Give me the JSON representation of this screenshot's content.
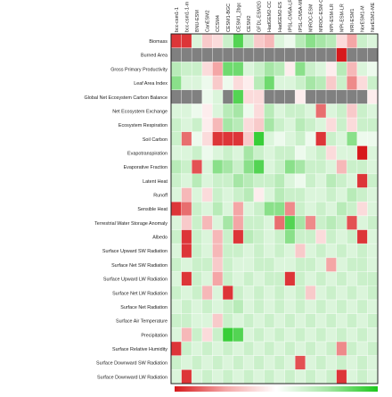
{
  "chart_data": {
    "type": "heatmap",
    "models": [
      "bcc-csm1-1",
      "bcc-csm1-1-m",
      "BNU-ESM",
      "CanESM2",
      "CCSM4",
      "CESM1-BGC",
      "CESM1_2bgc",
      "CESM2",
      "GFDL-ESM2G",
      "HadGEM2-CC",
      "HadGEM2-ES",
      "IPSL-CM5A-LR",
      "IPSL-CM5A-MR",
      "MIROC-ESM",
      "MIROC-ESM-C",
      "MPI-ESM-LR",
      "MPI-ESM-LR",
      "MRI-ESM1",
      "NorESM1-M",
      "NorESM1-ME"
    ],
    "variables": [
      "Biomass",
      "Burned Area",
      "Gross Primary Productivity",
      "Leaf Area Index",
      "Global Net Ecosystem Carbon Balance",
      "Net Ecosystem Exchange",
      "Ecosystem Respiration",
      "Soil Carbon",
      "Evapotranspiration",
      "Evaporative Fraction",
      "Latent Heat",
      "Runoff",
      "Sensible Heat",
      "Terrestrial Water Storage Anomaly",
      "Albedo",
      "Surface Upward SW Radiation",
      "Surface Net SW Radiation",
      "Surface Upward LW Radiation",
      "Surface Net LW Radiation",
      "Surface Net Radiation",
      "Surface Air Temperature",
      "Precipitation",
      "Surface Relative Humidity",
      "Surface Downward SW Radiation",
      "Surface Downward LW Radiation"
    ],
    "missing_color": "#808080",
    "colorscale": [
      "#d7191c",
      "#f4a6a6",
      "#ffffff",
      "#a6e6a6",
      "#1cc81c"
    ],
    "values": [
      [
        -0.9,
        -0.9,
        0.2,
        -0.3,
        -0.2,
        0.3,
        0.8,
        0.3,
        -0.3,
        -0.4,
        0.2,
        0.1,
        0.4,
        0.6,
        0.5,
        0.4,
        -0.2,
        -0.5,
        0.3,
        0.2
      ],
      [
        null,
        null,
        null,
        null,
        null,
        null,
        null,
        null,
        null,
        null,
        null,
        null,
        null,
        null,
        null,
        null,
        -1.0,
        null,
        null,
        null
      ],
      [
        0.4,
        0.3,
        0.3,
        -0.2,
        -0.5,
        0.7,
        0.7,
        0.2,
        0.3,
        0.5,
        0.4,
        -0.1,
        0.6,
        0.3,
        0.2,
        -0.1,
        0.4,
        -0.4,
        0.2,
        0.1
      ],
      [
        0.6,
        0.2,
        0.2,
        0.1,
        -0.3,
        0.1,
        -0.2,
        -0.1,
        0.4,
        0.7,
        0.2,
        0.2,
        0.3,
        0.5,
        0.4,
        -0.3,
        0.3,
        -0.6,
        -0.2,
        0.3
      ],
      [
        null,
        null,
        null,
        0.1,
        0.2,
        null,
        0.8,
        -0.2,
        -0.2,
        null,
        null,
        null,
        -0.1,
        null,
        null,
        null,
        null,
        null,
        null,
        -0.1
      ],
      [
        0.2,
        0.2,
        0.1,
        -0.1,
        0.2,
        0.4,
        0.5,
        0.1,
        -0.2,
        0.4,
        0.2,
        0.3,
        0.3,
        0.2,
        -0.7,
        0.2,
        0.3,
        -0.3,
        0.3,
        0.2
      ],
      [
        0.3,
        0.2,
        0.3,
        -0.1,
        -0.4,
        0.5,
        0.4,
        -0.2,
        -0.3,
        0.5,
        0.3,
        0.2,
        0.4,
        0.3,
        0.2,
        -0.2,
        0.3,
        -0.2,
        0.3,
        0.3
      ],
      [
        0.3,
        -0.7,
        0.1,
        -0.2,
        -0.9,
        -0.9,
        -0.9,
        -0.3,
        0.9,
        0.2,
        0.1,
        0.2,
        0.3,
        0.1,
        -0.9,
        0.3,
        0.2,
        0.6,
        0.1,
        0.1
      ],
      [
        0.2,
        0.2,
        0.3,
        0.1,
        0.2,
        0.3,
        0.2,
        0.5,
        0.3,
        0.2,
        0.3,
        0.3,
        0.1,
        0.2,
        0.3,
        -0.2,
        0.2,
        0.2,
        -1.0,
        0.2
      ],
      [
        0.4,
        0.3,
        -0.8,
        0.2,
        0.6,
        0.5,
        0.3,
        0.6,
        0.8,
        0.2,
        0.3,
        0.6,
        0.5,
        0.3,
        0.3,
        0.2,
        -0.4,
        0.3,
        0.3,
        0.2
      ],
      [
        0.3,
        0.2,
        0.4,
        0.2,
        0.3,
        0.3,
        0.5,
        0.4,
        0.3,
        0.3,
        0.4,
        0.2,
        0.1,
        0.3,
        0.2,
        0.4,
        0.3,
        0.2,
        -0.9,
        0.3
      ],
      [
        0.2,
        -0.4,
        0.2,
        -0.2,
        0.3,
        0.2,
        0.3,
        0.4,
        -0.1,
        0.2,
        0.4,
        0.3,
        0.3,
        0.2,
        0.2,
        0.3,
        0.2,
        0.4,
        0.3,
        0.2
      ],
      [
        -0.9,
        -0.7,
        0.3,
        0.2,
        0.4,
        0.2,
        -0.5,
        0.2,
        0.3,
        0.6,
        0.6,
        -0.6,
        0.3,
        0.2,
        0.3,
        0.2,
        0.4,
        0.3,
        -0.2,
        0.2
      ],
      [
        0.2,
        -0.3,
        0.3,
        -0.4,
        0.2,
        0.5,
        -0.5,
        0.3,
        0.3,
        0.2,
        -0.7,
        0.8,
        0.5,
        -0.6,
        0.3,
        0.4,
        0.3,
        -0.8,
        0.2,
        0.3
      ],
      [
        0.3,
        -0.9,
        0.3,
        0.2,
        -0.4,
        0.3,
        -0.9,
        0.4,
        0.3,
        0.2,
        0.3,
        0.6,
        0.3,
        0.3,
        -0.2,
        0.3,
        0.2,
        0.3,
        -0.9,
        0.2
      ],
      [
        0.2,
        -0.9,
        0.3,
        0.2,
        -0.4,
        0.3,
        0.3,
        0.2,
        0.3,
        0.2,
        0.3,
        0.2,
        -0.3,
        0.2,
        0.3,
        0.2,
        0.3,
        0.2,
        0.3,
        0.2
      ],
      [
        0.3,
        0.2,
        0.3,
        0.3,
        -0.3,
        0.3,
        0.2,
        0.2,
        0.3,
        0.3,
        0.2,
        0.2,
        0.3,
        0.3,
        0.2,
        -0.5,
        0.2,
        0.3,
        0.3,
        0.2
      ],
      [
        0.2,
        -0.9,
        0.3,
        0.2,
        -0.5,
        0.3,
        0.2,
        0.3,
        0.2,
        0.3,
        0.3,
        -0.9,
        0.3,
        0.2,
        0.3,
        0.2,
        0.3,
        0.2,
        0.3,
        0.3
      ],
      [
        0.3,
        0.2,
        0.3,
        -0.4,
        0.2,
        -0.9,
        0.3,
        0.2,
        0.3,
        0.2,
        0.3,
        0.2,
        0.3,
        -0.3,
        0.2,
        0.3,
        0.2,
        0.3,
        0.2,
        0.3
      ],
      [
        0.2,
        0.3,
        0.2,
        0.3,
        0.2,
        0.3,
        0.4,
        0.2,
        0.3,
        0.2,
        0.3,
        0.2,
        0.3,
        0.2,
        0.3,
        0.2,
        0.3,
        0.2,
        0.3,
        0.2
      ],
      [
        0.3,
        0.3,
        0.2,
        0.2,
        -0.3,
        0.3,
        0.2,
        0.3,
        0.2,
        0.3,
        0.2,
        0.3,
        0.2,
        0.3,
        0.2,
        0.3,
        0.2,
        0.3,
        0.2,
        0.3
      ],
      [
        0.2,
        -0.4,
        0.3,
        -0.2,
        0.3,
        0.9,
        0.8,
        0.2,
        0.3,
        0.2,
        0.3,
        0.2,
        0.3,
        0.2,
        0.3,
        0.2,
        0.3,
        0.2,
        0.3,
        0.2
      ],
      [
        -0.9,
        0.3,
        0.2,
        0.3,
        0.2,
        0.3,
        0.2,
        0.3,
        0.2,
        0.3,
        0.2,
        0.3,
        0.2,
        0.3,
        0.2,
        0.3,
        -0.6,
        0.3,
        0.2,
        0.3
      ],
      [
        0.3,
        0.2,
        0.3,
        0.2,
        0.3,
        0.2,
        0.3,
        0.2,
        0.3,
        0.2,
        0.3,
        0.2,
        -0.8,
        0.2,
        0.3,
        0.2,
        0.3,
        0.2,
        0.3,
        0.2
      ],
      [
        0.2,
        -0.9,
        0.2,
        0.3,
        0.2,
        0.3,
        0.2,
        0.3,
        0.2,
        0.3,
        0.2,
        0.3,
        0.2,
        0.3,
        0.2,
        0.3,
        -0.9,
        0.2,
        0.3,
        0.2
      ]
    ],
    "colorbar": true
  }
}
